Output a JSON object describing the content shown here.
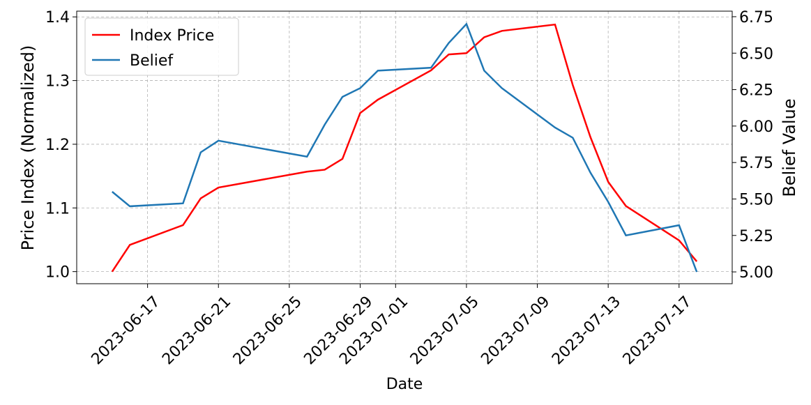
{
  "chart_data": {
    "type": "line",
    "x_label": "Date",
    "y_label": "Price Index (Normalized)",
    "y2_label": "Belief Value",
    "x": [
      "2023-06-15",
      "2023-06-16",
      "2023-06-19",
      "2023-06-20",
      "2023-06-21",
      "2023-06-26",
      "2023-06-27",
      "2023-06-28",
      "2023-06-29",
      "2023-06-30",
      "2023-07-03",
      "2023-07-04",
      "2023-07-05",
      "2023-07-06",
      "2023-07-07",
      "2023-07-10",
      "2023-07-11",
      "2023-07-12",
      "2023-07-13",
      "2023-07-14",
      "2023-07-17",
      "2023-07-18"
    ],
    "series": [
      {
        "name": "Index Price",
        "color": "#ff0000",
        "axis": "y",
        "values": [
          1.0,
          1.042,
          1.073,
          1.115,
          1.132,
          1.157,
          1.16,
          1.177,
          1.249,
          1.27,
          1.316,
          1.341,
          1.343,
          1.368,
          1.378,
          1.388,
          1.293,
          1.211,
          1.141,
          1.103,
          1.049,
          1.016
        ]
      },
      {
        "name": "Belief",
        "color": "#1f77b4",
        "axis": "y2",
        "values": [
          5.55,
          5.45,
          5.47,
          5.82,
          5.9,
          5.79,
          6.01,
          6.2,
          6.26,
          6.38,
          6.4,
          6.57,
          6.7,
          6.38,
          6.26,
          5.99,
          5.92,
          5.68,
          5.48,
          5.25,
          5.32,
          5.0
        ]
      }
    ],
    "xlim": [
      "2023-06-13",
      "2023-07-20"
    ],
    "xticks": [
      "2023-06-17",
      "2023-06-21",
      "2023-06-25",
      "2023-06-29",
      "2023-07-01",
      "2023-07-05",
      "2023-07-09",
      "2023-07-13",
      "2023-07-17"
    ],
    "ylim": [
      0.981,
      1.409
    ],
    "yticks": [
      {
        "value": 1,
        "label": "1.0"
      },
      1.1,
      1.2,
      1.3,
      1.4
    ],
    "y2lim": [
      4.919,
      6.788
    ],
    "y2ticks": [
      {
        "value": 5,
        "label": "5.00"
      },
      5.25,
      {
        "value": 5.5,
        "label": "5.50"
      },
      5.75,
      {
        "value": 6,
        "label": "6.00"
      },
      6.25,
      {
        "value": 6.5,
        "label": "6.50"
      },
      6.75
    ],
    "grid": true,
    "legend": "upper left"
  }
}
